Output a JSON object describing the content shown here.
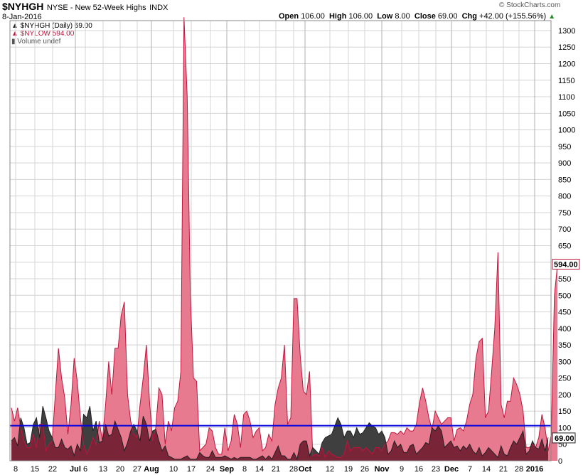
{
  "header": {
    "symbol": "$NYHGH",
    "description": "NYSE - New 52-Week Highs",
    "exchange": "INDX",
    "date": "8-Jan-2016",
    "open_label": "Open",
    "open": "106.00",
    "high_label": "High",
    "high": "106.00",
    "low_label": "Low",
    "low": "8.00",
    "close_label": "Close",
    "close": "69.00",
    "chg_label": "Chg",
    "chg": "+42.00 (+155.56%)",
    "copyright": "© StockCharts.com"
  },
  "legend": {
    "items": [
      {
        "label": "$NYHGH (Daily) 69.00",
        "color": "#222222"
      },
      {
        "label": "$NYLOW 594.00",
        "color": "#c0143c"
      },
      {
        "label": "Volume undef",
        "color": "#555555"
      }
    ]
  },
  "colors": {
    "nyhgh_fill": "#3f3f3f",
    "nylow_fill": "#e87a90",
    "nylow_stroke": "#c0143c",
    "overlap_fill": "#7a2438",
    "hline": "#0000e0",
    "grid": "#d4d4d4"
  },
  "chart_data": {
    "type": "area",
    "y_axis_ticks": [
      "0",
      "50",
      "100",
      "150",
      "200",
      "250",
      "300",
      "350",
      "400",
      "450",
      "500",
      "550",
      "600",
      "650",
      "700",
      "750",
      "800",
      "850",
      "900",
      "950",
      "1000",
      "1050",
      "1100",
      "1150",
      "1200",
      "1250",
      "1300"
    ],
    "ylim": [
      0,
      1330
    ],
    "x_tick_labels": [
      "8",
      "15",
      "22",
      "Jul",
      "6",
      "13",
      "20",
      "27",
      "Aug",
      "10",
      "17",
      "24",
      "Sep",
      "8",
      "14",
      "21",
      "28",
      "Oct",
      "12",
      "19",
      "26",
      "Nov",
      "9",
      "16",
      "23",
      "Dec",
      "7",
      "14",
      "21",
      "28",
      "2016"
    ],
    "reference_line": 106,
    "last_values": {
      "nylow": "594.00",
      "nyhgh": "69.00"
    },
    "series": [
      {
        "name": "$NYHGH",
        "values": [
          60,
          70,
          45,
          130,
          100,
          50,
          55,
          110,
          130,
          70,
          165,
          130,
          90,
          70,
          40,
          40,
          65,
          40,
          35,
          45,
          15,
          50,
          30,
          140,
          130,
          165,
          90,
          120,
          55,
          60,
          110,
          75,
          80,
          120,
          95,
          70,
          30,
          55,
          90,
          110,
          90,
          60,
          135,
          110,
          60,
          90,
          95,
          60,
          30,
          45,
          15,
          10,
          5,
          5,
          5,
          10,
          15,
          5,
          5,
          5,
          25,
          15,
          10,
          10,
          30,
          10,
          10,
          10,
          15,
          10,
          5,
          10,
          5,
          10,
          10,
          10,
          10,
          5,
          5,
          10,
          15,
          5,
          15,
          5,
          25,
          45,
          15,
          15,
          5,
          5,
          25,
          5,
          50,
          60,
          60,
          15,
          40,
          30,
          20,
          55,
          70,
          75,
          80,
          105,
          130,
          110,
          70,
          90,
          90,
          70,
          100,
          80,
          85,
          100,
          115,
          105,
          100,
          80,
          90,
          70,
          20,
          30,
          60,
          40,
          50,
          25,
          25,
          45,
          50,
          20,
          30,
          40,
          55,
          50,
          100,
          90,
          105,
          90,
          40,
          50,
          60,
          40,
          45,
          30,
          45,
          35,
          50,
          30,
          20,
          40,
          15,
          25,
          40,
          30,
          20,
          10,
          45,
          20,
          15,
          40,
          60,
          50,
          70,
          90,
          20,
          30,
          60,
          40,
          35,
          65,
          30,
          70
        ]
      },
      {
        "name": "$NYLOW",
        "values": [
          160,
          120,
          160,
          100,
          60,
          40,
          40,
          80,
          40,
          110,
          110,
          30,
          50,
          60,
          200,
          340,
          250,
          190,
          80,
          170,
          310,
          240,
          130,
          50,
          20,
          40,
          70,
          50,
          120,
          60,
          170,
          300,
          200,
          340,
          340,
          440,
          480,
          200,
          120,
          80,
          70,
          170,
          250,
          350,
          180,
          60,
          100,
          220,
          200,
          50,
          120,
          90,
          160,
          180,
          270,
          1340,
          1100,
          500,
          250,
          240,
          30,
          40,
          50,
          100,
          90,
          40,
          20,
          20,
          100,
          30,
          60,
          140,
          110,
          40,
          140,
          150,
          120,
          70,
          90,
          100,
          30,
          40,
          80,
          60,
          170,
          220,
          250,
          350,
          110,
          130,
          490,
          490,
          320,
          210,
          200,
          270,
          15,
          20,
          15,
          40,
          10,
          30,
          20,
          15,
          10,
          10,
          20,
          60,
          30,
          40,
          40,
          40,
          30,
          40,
          30,
          20,
          40,
          40,
          30,
          50,
          60,
          85,
          85,
          80,
          90,
          80,
          100,
          90,
          90,
          110,
          175,
          220,
          180,
          130,
          95,
          150,
          130,
          110,
          120,
          130,
          130,
          60,
          95,
          100,
          90,
          120,
          170,
          200,
          310,
          360,
          370,
          130,
          150,
          270,
          400,
          630,
          170,
          130,
          180,
          180,
          250,
          230,
          200,
          150,
          40,
          40,
          50,
          40,
          70,
          140,
          100,
          30,
          80,
          500,
          594
        ]
      }
    ]
  }
}
